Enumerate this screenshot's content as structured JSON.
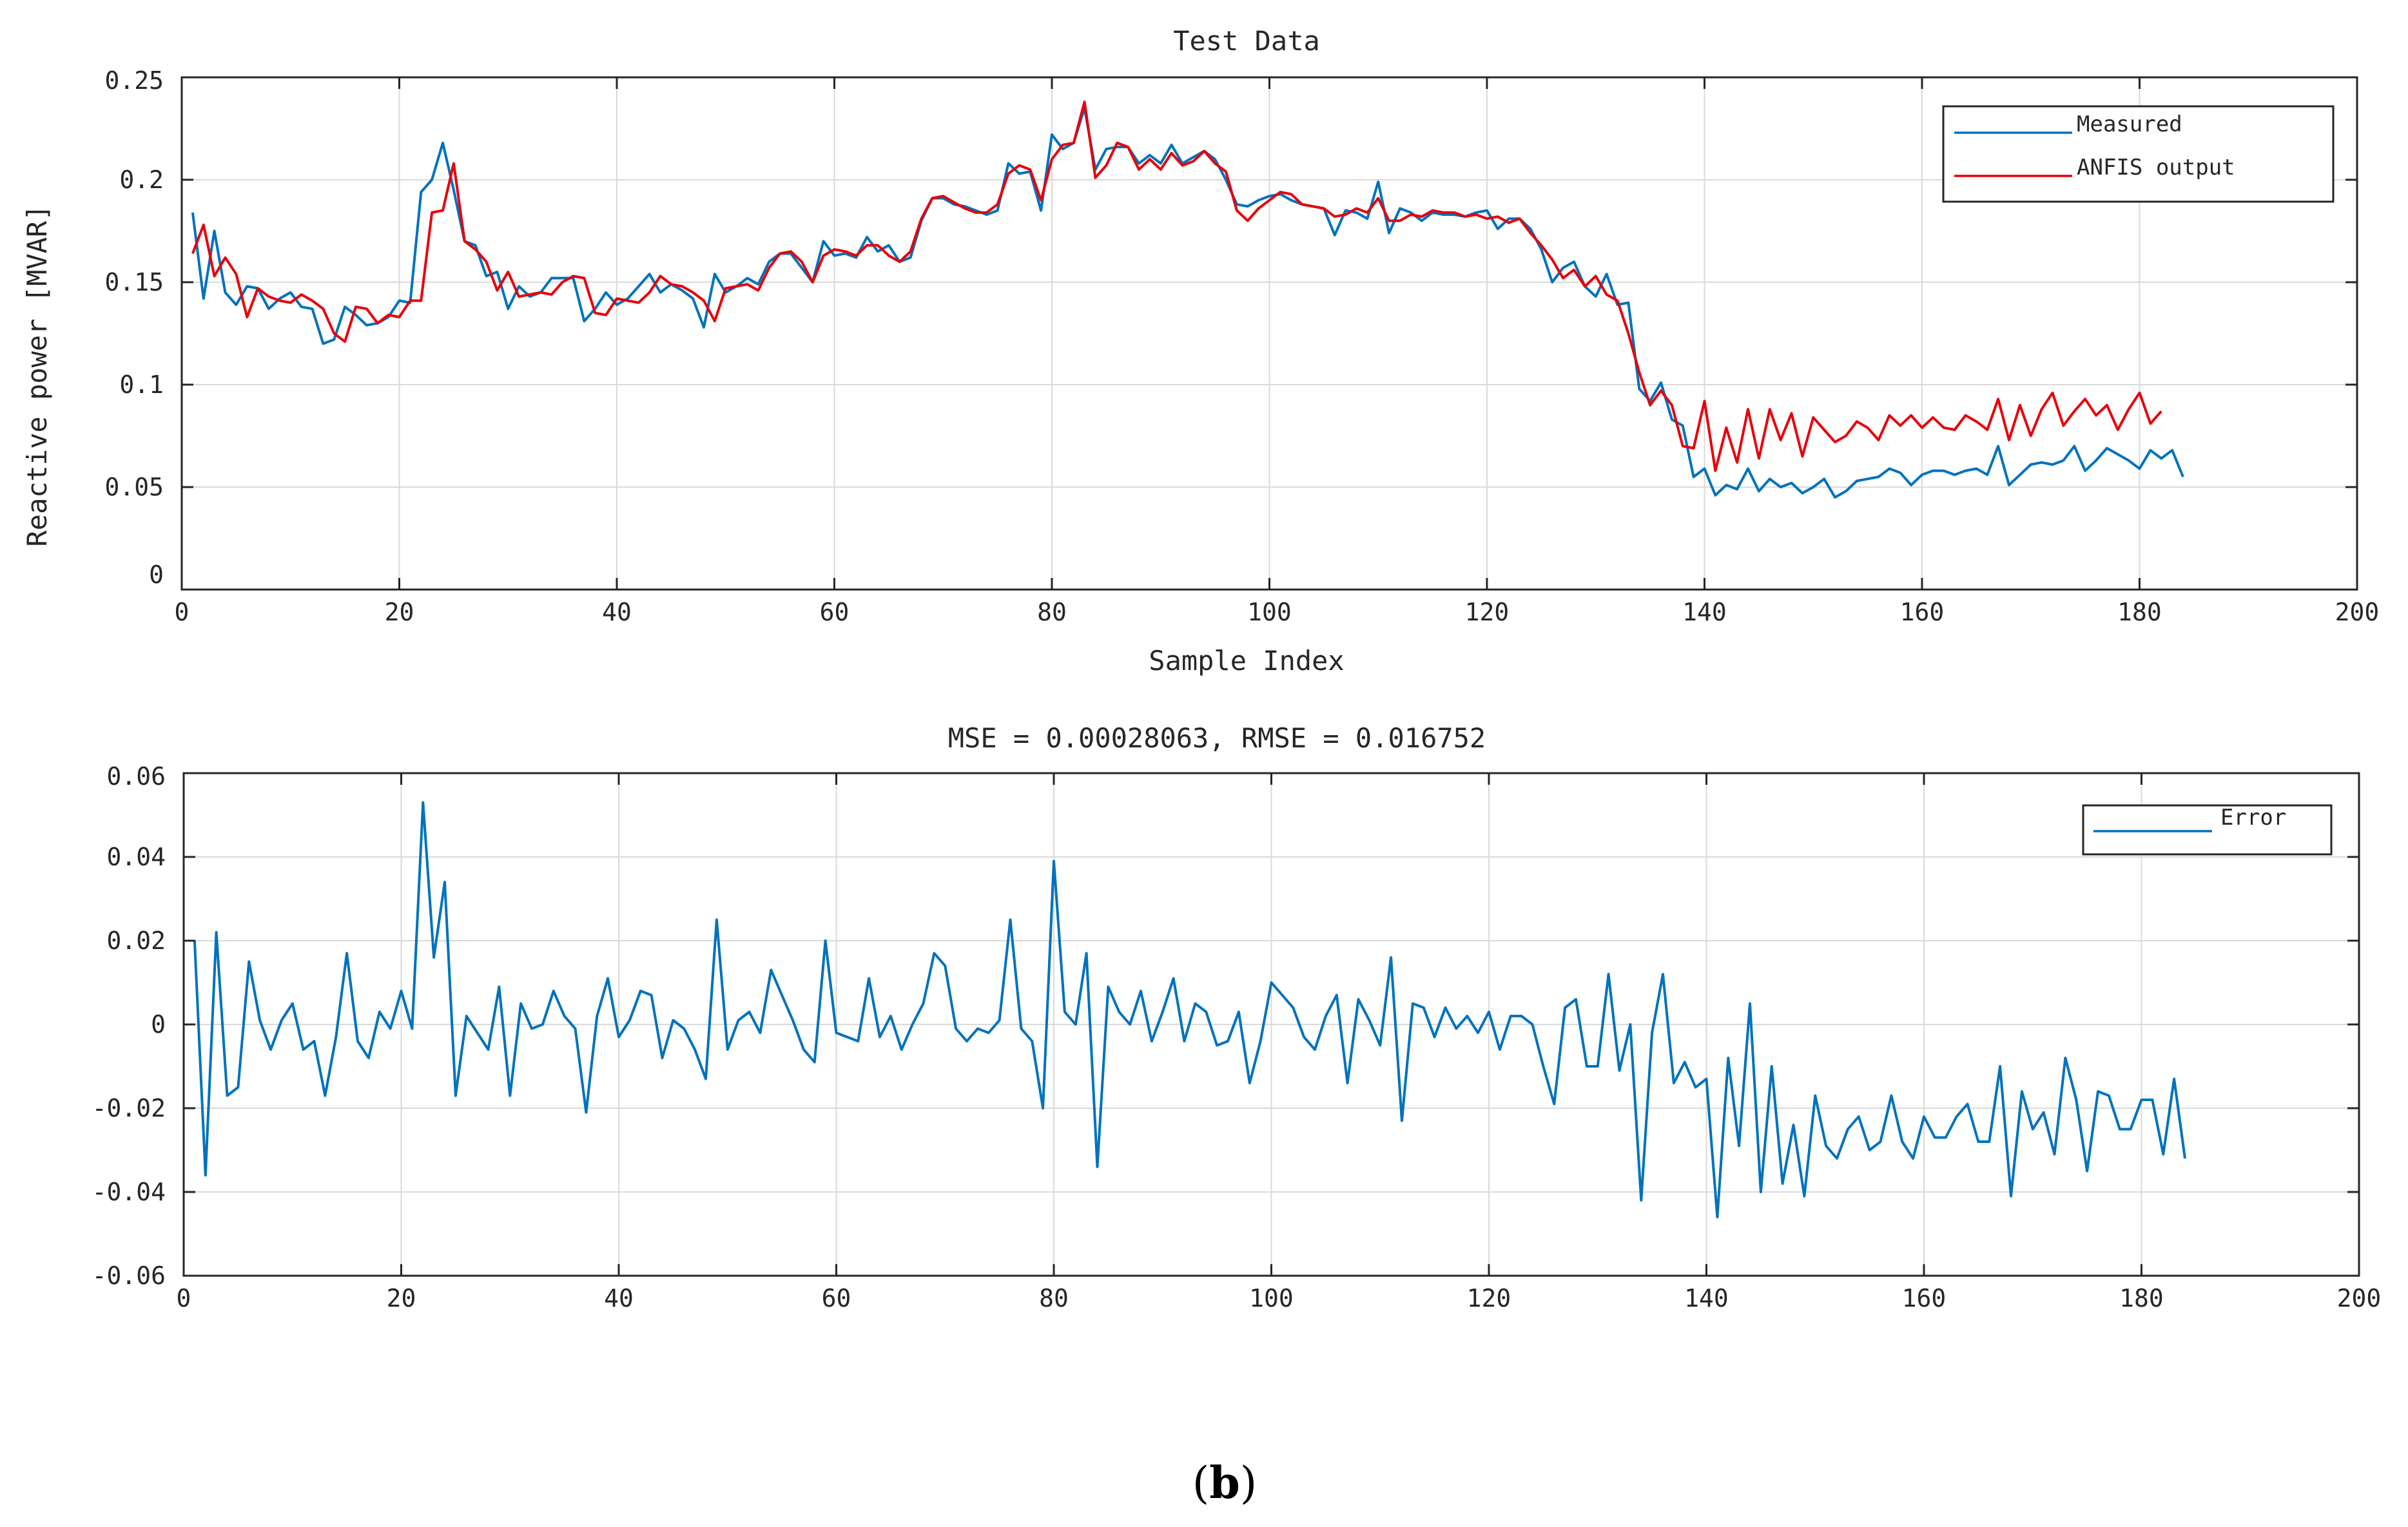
{
  "caption": {
    "open": "(",
    "letter": "b",
    "close": ")"
  },
  "colors": {
    "measured": "#0072BD",
    "anfis": "#E8000B",
    "error": "#0072BD",
    "grid": "#DADADA",
    "axis": "#262626"
  },
  "chart_data": [
    {
      "type": "line",
      "title": "Test Data",
      "xlabel": "Sample Index",
      "ylabel": "Reactive power [MVAR]",
      "xlim": [
        0,
        200
      ],
      "ylim": [
        0,
        0.25
      ],
      "xticks": [
        0,
        20,
        40,
        60,
        80,
        100,
        120,
        140,
        160,
        180,
        200
      ],
      "yticks": [
        0,
        0.05,
        0.1,
        0.15,
        0.2,
        0.25
      ],
      "ytick_labels": [
        "0",
        "0.05",
        "0.1",
        "0.15",
        "0.2",
        "0.25"
      ],
      "grid": true,
      "legend_position": "top-right",
      "series": [
        {
          "name": "Measured",
          "color": "#0072BD",
          "values": [
            0.184,
            0.142,
            0.175,
            0.145,
            0.139,
            0.148,
            0.147,
            0.137,
            0.142,
            0.145,
            0.138,
            0.137,
            0.12,
            0.122,
            0.138,
            0.134,
            0.129,
            0.13,
            0.133,
            0.141,
            0.14,
            0.194,
            0.2,
            0.218,
            0.195,
            0.17,
            0.168,
            0.153,
            0.155,
            0.137,
            0.148,
            0.143,
            0.145,
            0.152,
            0.152,
            0.152,
            0.131,
            0.137,
            0.145,
            0.139,
            0.142,
            0.148,
            0.154,
            0.145,
            0.149,
            0.146,
            0.142,
            0.128,
            0.154,
            0.145,
            0.148,
            0.152,
            0.149,
            0.16,
            0.164,
            0.164,
            0.157,
            0.15,
            0.17,
            0.163,
            0.164,
            0.162,
            0.172,
            0.165,
            0.168,
            0.16,
            0.162,
            0.18,
            0.191,
            0.191,
            0.188,
            0.187,
            0.185,
            0.183,
            0.185,
            0.208,
            0.203,
            0.204,
            0.185,
            0.222,
            0.215,
            0.218,
            0.235,
            0.205,
            0.215,
            0.216,
            0.216,
            0.208,
            0.212,
            0.208,
            0.217,
            0.208,
            0.211,
            0.214,
            0.21,
            0.2,
            0.188,
            0.187,
            0.19,
            0.192,
            0.193,
            0.19,
            0.188,
            0.187,
            0.186,
            0.173,
            0.185,
            0.184,
            0.181,
            0.199,
            0.174,
            0.186,
            0.184,
            0.18,
            0.184,
            0.183,
            0.183,
            0.182,
            0.184,
            0.185,
            0.176,
            0.181,
            0.181,
            0.176,
            0.166,
            0.15,
            0.157,
            0.16,
            0.148,
            0.143,
            0.154,
            0.139,
            0.14,
            0.098,
            0.092,
            0.101,
            0.083,
            0.08,
            0.055,
            0.059,
            0.046,
            0.051,
            0.049,
            0.059,
            0.048,
            0.054,
            0.05,
            0.052,
            0.047,
            0.05,
            0.054,
            0.045,
            0.048,
            0.053,
            0.054,
            0.055,
            0.059,
            0.057,
            0.051,
            0.056,
            0.058,
            0.058,
            0.056,
            0.058,
            0.059,
            0.056,
            0.07,
            0.051,
            0.056,
            0.061,
            0.062,
            0.061,
            0.063,
            0.07,
            0.058,
            0.063,
            0.069,
            0.066,
            0.063,
            0.059,
            0.068,
            0.064,
            0.068,
            0.055
          ]
        },
        {
          "name": "ANFIS output",
          "color": "#E8000B",
          "values": [
            0.164,
            0.178,
            0.153,
            0.162,
            0.154,
            0.133,
            0.147,
            0.143,
            0.141,
            0.14,
            0.144,
            0.141,
            0.137,
            0.125,
            0.121,
            0.138,
            0.137,
            0.13,
            0.134,
            0.133,
            0.141,
            0.141,
            0.184,
            0.185,
            0.208,
            0.17,
            0.166,
            0.16,
            0.146,
            0.155,
            0.143,
            0.144,
            0.145,
            0.144,
            0.15,
            0.153,
            0.152,
            0.135,
            0.134,
            0.142,
            0.141,
            0.14,
            0.145,
            0.153,
            0.149,
            0.148,
            0.145,
            0.141,
            0.131,
            0.147,
            0.148,
            0.149,
            0.146,
            0.157,
            0.164,
            0.165,
            0.16,
            0.15,
            0.163,
            0.166,
            0.165,
            0.163,
            0.168,
            0.168,
            0.163,
            0.16,
            0.165,
            0.181,
            0.191,
            0.192,
            0.189,
            0.186,
            0.184,
            0.184,
            0.188,
            0.203,
            0.207,
            0.205,
            0.19,
            0.21,
            0.217,
            0.218,
            0.238,
            0.201,
            0.207,
            0.218,
            0.216,
            0.205,
            0.21,
            0.205,
            0.213,
            0.207,
            0.209,
            0.214,
            0.208,
            0.204,
            0.185,
            0.18,
            0.186,
            0.19,
            0.194,
            0.193,
            0.188,
            0.187,
            0.186,
            0.182,
            0.183,
            0.186,
            0.184,
            0.191,
            0.18,
            0.18,
            0.183,
            0.182,
            0.185,
            0.184,
            0.184,
            0.182,
            0.183,
            0.181,
            0.182,
            0.179,
            0.181,
            0.174,
            0.168,
            0.161,
            0.152,
            0.156,
            0.148,
            0.153,
            0.144,
            0.141,
            0.125,
            0.106,
            0.09,
            0.097,
            0.09,
            0.07,
            0.069,
            0.092,
            0.058,
            0.079,
            0.062,
            0.088,
            0.064,
            0.088,
            0.073,
            0.086,
            0.065,
            0.084,
            0.078,
            0.072,
            0.075,
            0.082,
            0.079,
            0.073,
            0.085,
            0.08,
            0.085,
            0.079,
            0.084,
            0.079,
            0.078,
            0.085,
            0.082,
            0.078,
            0.093,
            0.073,
            0.09,
            0.075,
            0.088,
            0.096,
            0.08,
            0.087,
            0.093,
            0.085,
            0.09,
            0.078,
            0.088,
            0.096,
            0.081,
            0.087
          ]
        }
      ]
    },
    {
      "type": "line",
      "title": "MSE = 0.00028063, RMSE = 0.016752",
      "xlabel": "",
      "ylabel": "",
      "xlim": [
        0,
        200
      ],
      "ylim": [
        -0.06,
        0.06
      ],
      "xticks": [
        0,
        20,
        40,
        60,
        80,
        100,
        120,
        140,
        160,
        180,
        200
      ],
      "yticks": [
        -0.06,
        -0.04,
        -0.02,
        0,
        0.02,
        0.04,
        0.06
      ],
      "ytick_labels": [
        "-0.06",
        "-0.04",
        "-0.02",
        "0",
        "0.02",
        "0.04",
        "0.06"
      ],
      "grid": true,
      "legend_position": "top-right",
      "series": [
        {
          "name": "Error",
          "color": "#0072BD",
          "values": [
            0.02,
            -0.036,
            0.022,
            -0.017,
            -0.015,
            0.015,
            0.001,
            -0.006,
            0.001,
            0.005,
            -0.006,
            -0.004,
            -0.017,
            -0.003,
            0.017,
            -0.004,
            -0.008,
            0.003,
            -0.001,
            0.008,
            -0.001,
            0.053,
            0.016,
            0.034,
            -0.017,
            0.002,
            -0.002,
            -0.006,
            0.009,
            -0.017,
            0.005,
            -0.001,
            0.0,
            0.008,
            0.002,
            -0.001,
            -0.021,
            0.002,
            0.011,
            -0.003,
            0.001,
            0.008,
            0.007,
            -0.008,
            0.001,
            -0.001,
            -0.006,
            -0.013,
            0.025,
            -0.006,
            0.001,
            0.003,
            -0.002,
            0.013,
            0.007,
            0.001,
            -0.006,
            -0.009,
            0.02,
            -0.002,
            -0.003,
            -0.004,
            0.011,
            -0.003,
            0.002,
            -0.006,
            0.0,
            0.005,
            0.017,
            0.014,
            -0.001,
            -0.004,
            -0.001,
            -0.002,
            0.001,
            0.025,
            -0.001,
            -0.004,
            -0.02,
            0.039,
            0.003,
            0.0,
            0.017,
            -0.034,
            0.009,
            0.003,
            0.0,
            0.008,
            -0.004,
            0.003,
            0.011,
            -0.004,
            0.005,
            0.003,
            -0.005,
            -0.004,
            0.003,
            -0.014,
            -0.004,
            0.01,
            0.007,
            0.004,
            -0.003,
            -0.006,
            0.002,
            0.007,
            -0.014,
            0.006,
            0.001,
            -0.005,
            0.016,
            -0.023,
            0.005,
            0.004,
            -0.003,
            0.004,
            -0.001,
            0.002,
            -0.002,
            0.003,
            -0.006,
            0.002,
            0.002,
            0.0,
            -0.01,
            -0.019,
            0.004,
            0.006,
            -0.01,
            -0.01,
            0.012,
            -0.011,
            0.0,
            -0.042,
            -0.002,
            0.012,
            -0.014,
            -0.009,
            -0.015,
            -0.013,
            -0.046,
            -0.008,
            -0.029,
            0.005,
            -0.04,
            -0.01,
            -0.038,
            -0.024,
            -0.041,
            -0.017,
            -0.029,
            -0.032,
            -0.025,
            -0.022,
            -0.03,
            -0.028,
            -0.017,
            -0.028,
            -0.032,
            -0.022,
            -0.027,
            -0.027,
            -0.022,
            -0.019,
            -0.028,
            -0.028,
            -0.01,
            -0.041,
            -0.016,
            -0.025,
            -0.021,
            -0.031,
            -0.008,
            -0.018,
            -0.035,
            -0.016,
            -0.017,
            -0.025,
            -0.025,
            -0.018,
            -0.018,
            -0.031,
            -0.013,
            -0.032
          ]
        }
      ]
    }
  ]
}
